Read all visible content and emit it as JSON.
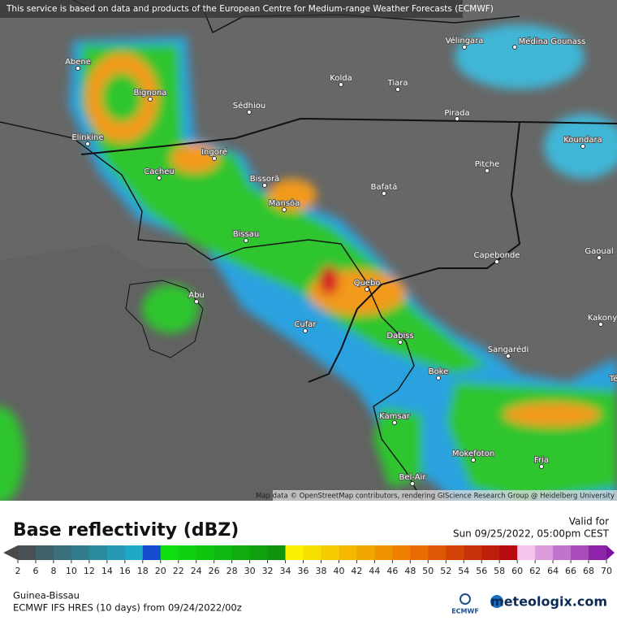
{
  "header": {
    "notice": "This service is based on data and products of the European Centre for Medium-range Weather Forecasts (ECMWF)"
  },
  "map": {
    "places": [
      "Abene",
      "Bignona",
      "Sédhiou",
      "Kolda",
      "Tiara",
      "Vélingara",
      "Médina Gounass",
      "Pirada",
      "Koundara",
      "Elinkine",
      "Ingoré",
      "Cacheu",
      "Bissorã",
      "Bafatá",
      "Pitche",
      "Mansôa",
      "Bissau",
      "Capebonde",
      "Gaoual",
      "Abu",
      "Quebo",
      "Kakony",
      "Cufar",
      "Dabiss",
      "Sangarédi",
      "Boke",
      "Kamsar",
      "Mokefoton",
      "Fria",
      "Bel-Air",
      "Té"
    ],
    "attribution": "Map data © OpenStreetMap contributors, rendering GIScience Research Group @ Heidelberg University"
  },
  "legend": {
    "title": "Base reflectivity (dBZ)",
    "valid_label": "Valid for",
    "valid_time": "Sun 09/25/2022, 05:00pm CEST",
    "ticks": [
      "2",
      "6",
      "8",
      "10",
      "12",
      "14",
      "16",
      "18",
      "20",
      "22",
      "24",
      "26",
      "28",
      "30",
      "32",
      "34",
      "36",
      "38",
      "40",
      "42",
      "44",
      "46",
      "48",
      "50",
      "52",
      "54",
      "56",
      "58",
      "60",
      "62",
      "64",
      "66",
      "68",
      "70"
    ]
  },
  "footer": {
    "region": "Guinea-Bissau",
    "model": "ECMWF IFS HRES (10 days) from 09/24/2022/00z",
    "ecmwf_logo": "ECMWF",
    "brand": "meteologix.com"
  }
}
